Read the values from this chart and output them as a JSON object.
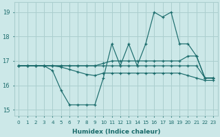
{
  "xlabel": "Humidex (Indice chaleur)",
  "x_values": [
    0,
    1,
    2,
    3,
    4,
    5,
    6,
    7,
    8,
    9,
    10,
    11,
    12,
    13,
    14,
    15,
    16,
    17,
    18,
    19,
    20,
    21,
    22,
    23
  ],
  "line1": [
    16.8,
    16.8,
    16.8,
    16.8,
    16.6,
    15.8,
    15.2,
    15.2,
    15.2,
    15.2,
    16.3,
    17.7,
    16.8,
    17.7,
    16.8,
    17.7,
    19.0,
    18.8,
    19.0,
    17.7,
    17.7,
    17.2,
    16.3,
    16.3
  ],
  "line2": [
    16.8,
    16.8,
    16.8,
    16.8,
    16.8,
    16.8,
    16.8,
    16.8,
    16.8,
    16.8,
    16.8,
    16.8,
    16.8,
    16.8,
    16.8,
    16.8,
    16.8,
    16.8,
    16.8,
    16.8,
    16.8,
    16.8,
    16.3,
    16.3
  ],
  "line3": [
    16.8,
    16.8,
    16.8,
    16.8,
    16.8,
    16.8,
    16.8,
    16.8,
    16.8,
    16.8,
    16.9,
    17.0,
    17.0,
    17.0,
    17.0,
    17.0,
    17.0,
    17.0,
    17.0,
    17.0,
    17.2,
    17.2,
    16.3,
    16.3
  ],
  "line4": [
    16.8,
    16.8,
    16.8,
    16.8,
    16.8,
    16.75,
    16.65,
    16.55,
    16.45,
    16.4,
    16.5,
    16.5,
    16.5,
    16.5,
    16.5,
    16.5,
    16.5,
    16.5,
    16.5,
    16.5,
    16.4,
    16.3,
    16.2,
    16.2
  ],
  "color": "#1a6b6b",
  "bg_color": "#cce8e8",
  "grid_color": "#aacece",
  "ylim": [
    14.75,
    19.4
  ],
  "yticks": [
    15,
    16,
    17,
    18,
    19
  ],
  "marker": "+"
}
